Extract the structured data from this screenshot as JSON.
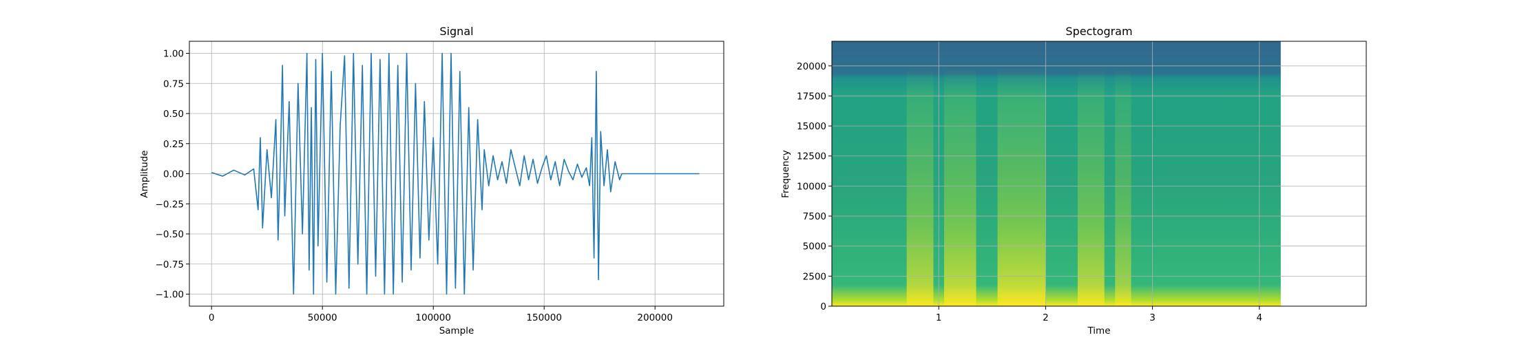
{
  "chart_data": [
    {
      "type": "line",
      "title": "Signal",
      "xlabel": "Sample",
      "ylabel": "Amplitude",
      "xlim": [
        -10000,
        231000
      ],
      "ylim": [
        -1.1,
        1.1
      ],
      "x_ticks": [
        0,
        50000,
        100000,
        150000,
        200000
      ],
      "x_tick_labels": [
        "0",
        "50000",
        "100000",
        "150000",
        "200000"
      ],
      "y_ticks": [
        -1.0,
        -0.75,
        -0.5,
        -0.25,
        0.0,
        0.25,
        0.5,
        0.75,
        1.0
      ],
      "y_tick_labels": [
        "−1.00",
        "−0.75",
        "−0.50",
        "−0.25",
        "0.00",
        "0.25",
        "0.50",
        "0.75",
        "1.00"
      ],
      "grid": true,
      "color": "#1f77b4",
      "series": [
        {
          "x": [
            0,
            5000,
            10000,
            15000,
            19000,
            21000,
            22000,
            23000,
            25000,
            27000,
            29000,
            30000,
            31000,
            32000,
            33000,
            35000,
            37000,
            39000,
            41000,
            43000,
            44000,
            45000,
            46000,
            47000,
            48000,
            50000,
            52000,
            54000,
            56000,
            58000,
            60000,
            62000,
            64000,
            66000,
            68000,
            70000,
            72000,
            74000,
            76000,
            78000,
            80000,
            82000,
            84000,
            86000,
            88000,
            90000,
            92000,
            94000,
            96000,
            98000,
            100000,
            102000,
            104000,
            106000,
            108000,
            110000,
            112000,
            114000,
            116000,
            118000,
            120000,
            122000,
            123000,
            125000,
            127000,
            129000,
            131000,
            133000,
            135000,
            137000,
            139000,
            141000,
            143000,
            145000,
            147000,
            149000,
            151000,
            153000,
            155000,
            157000,
            159000,
            161000,
            163000,
            165000,
            167000,
            169000,
            170500,
            171500,
            172500,
            173500,
            174500,
            175500,
            177000,
            178500,
            180000,
            182000,
            184000,
            185000,
            186000,
            190000,
            200000,
            210000,
            220000
          ],
          "y": [
            0.01,
            -0.02,
            0.03,
            -0.01,
            0.04,
            -0.3,
            0.3,
            -0.45,
            0.2,
            -0.2,
            0.45,
            -0.55,
            0.1,
            0.9,
            -0.35,
            0.6,
            -1.0,
            0.75,
            -0.5,
            1.0,
            -0.8,
            0.55,
            -1.0,
            0.95,
            -0.6,
            1.0,
            -0.9,
            0.85,
            -1.0,
            0.4,
            0.98,
            -0.95,
            1.0,
            -0.75,
            0.9,
            -1.0,
            1.0,
            -0.85,
            0.95,
            -1.0,
            1.0,
            -1.0,
            0.9,
            -0.9,
            1.0,
            -0.8,
            0.75,
            -0.7,
            0.6,
            -0.55,
            0.3,
            -0.75,
            1.0,
            -1.0,
            1.0,
            -0.95,
            0.85,
            -1.0,
            0.55,
            -0.8,
            0.45,
            -0.3,
            0.2,
            -0.1,
            0.15,
            -0.05,
            0.1,
            -0.08,
            0.2,
            0.05,
            -0.1,
            0.15,
            -0.05,
            0.12,
            -0.08,
            0.05,
            0.15,
            -0.05,
            0.1,
            -0.1,
            0.12,
            0.02,
            -0.05,
            0.08,
            -0.03,
            0.05,
            -0.1,
            0.3,
            -0.7,
            0.85,
            -0.88,
            0.35,
            -0.1,
            0.2,
            -0.15,
            0.1,
            -0.05,
            0.0,
            0.0,
            0.0,
            0.0,
            0.0,
            0.0
          ]
        }
      ]
    },
    {
      "type": "heatmap",
      "title": "Spectogram",
      "xlabel": "Time",
      "ylabel": "Frequency",
      "xlim": [
        0,
        5
      ],
      "ylim": [
        0,
        22050
      ],
      "data_extent": {
        "time": [
          0,
          4.2
        ],
        "frequency": [
          0,
          22050
        ]
      },
      "x_ticks": [
        1,
        2,
        3,
        4
      ],
      "x_tick_labels": [
        "1",
        "2",
        "3",
        "4"
      ],
      "y_ticks": [
        0,
        2500,
        5000,
        7500,
        10000,
        12500,
        15000,
        17500,
        20000
      ],
      "y_tick_labels": [
        "0",
        "2500",
        "5000",
        "7500",
        "10000",
        "12500",
        "15000",
        "17500",
        "20000"
      ],
      "grid": true,
      "colormap": "viridis",
      "energy_bands": [
        {
          "time": [
            0.7,
            0.95
          ],
          "intensity": 0.85
        },
        {
          "time": [
            1.05,
            1.35
          ],
          "intensity": 0.9
        },
        {
          "time": [
            1.55,
            2.0
          ],
          "intensity": 0.95
        },
        {
          "time": [
            2.3,
            2.55
          ],
          "intensity": 0.85
        },
        {
          "time": [
            2.65,
            2.8
          ],
          "intensity": 0.7
        }
      ]
    }
  ]
}
